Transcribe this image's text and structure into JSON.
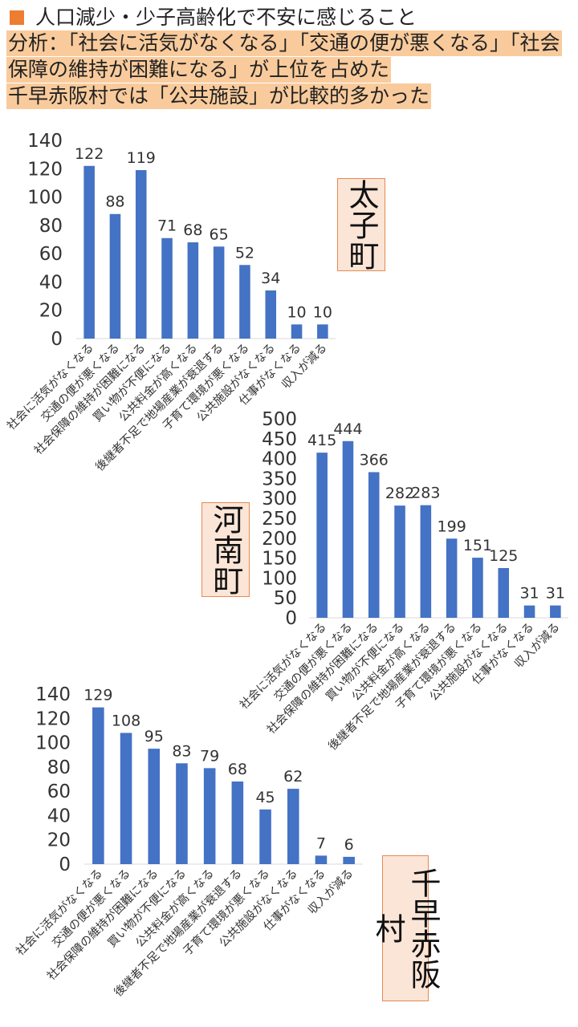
{
  "header": {
    "title": "人口減少・少子高齢化で不安に感じること",
    "analysis_lines": [
      "分析：「社会に活気がなくなる」「交通の便が悪くなる」「社会",
      "保障の維持が困難になる」が上位を占めた",
      "千早赤阪村では「公共施設」が比較的多かった"
    ]
  },
  "colors": {
    "bar": "#4472c4",
    "bullet": "#ed7d31",
    "highlight": "#f9cb9c",
    "label_bg": "#fbe5d6",
    "label_border": "#e58a53"
  },
  "chart_data": [
    {
      "type": "bar",
      "town": "太子町",
      "categories": [
        "社会に活気がなくなる",
        "交通の便が悪くなる",
        "社会保障の維持が困難になる",
        "買い物が不便になる",
        "公共料金が高くなる",
        "後継者不足で地場産業が衰退する",
        "子育て環境が悪くなる",
        "公共施設がなくなる",
        "仕事がなくなる",
        "収入が減る"
      ],
      "values": [
        122,
        88,
        119,
        71,
        68,
        65,
        52,
        34,
        10,
        10
      ],
      "yticks": [
        "0",
        "20",
        "40",
        "60",
        "80",
        "100",
        "120",
        "140"
      ],
      "ylim": [
        0,
        140
      ]
    },
    {
      "type": "bar",
      "town": "河南町",
      "categories": [
        "社会に活気がなくなる",
        "交通の便が悪くなる",
        "社会保障の維持が困難になる",
        "買い物が不便になる",
        "公共料金が高くなる",
        "後継者不足で地場産業が衰退する",
        "子育て環境が悪くなる",
        "公共施設がなくなる",
        "仕事がなくなる",
        "収入が減る"
      ],
      "values": [
        415,
        444,
        366,
        282,
        283,
        199,
        151,
        125,
        31,
        31
      ],
      "yticks": [
        "0",
        "50",
        "100",
        "150",
        "200",
        "250",
        "300",
        "350",
        "400",
        "450",
        "500"
      ],
      "ylim": [
        0,
        500
      ]
    },
    {
      "type": "bar",
      "town": "千早赤阪村",
      "categories": [
        "社会に活気がなくなる",
        "交通の便が悪くなる",
        "社会保障の維持が困難になる",
        "買い物が不便になる",
        "公共料金が高くなる",
        "後継者不足で地場産業が衰退する",
        "子育て環境が悪くなる",
        "公共施設がなくなる",
        "仕事がなくなる",
        "収入が減る"
      ],
      "values": [
        129,
        108,
        95,
        83,
        79,
        68,
        45,
        62,
        7,
        6
      ],
      "yticks": [
        "0",
        "20",
        "40",
        "60",
        "80",
        "100",
        "120",
        "140"
      ],
      "ylim": [
        0,
        140
      ]
    }
  ]
}
